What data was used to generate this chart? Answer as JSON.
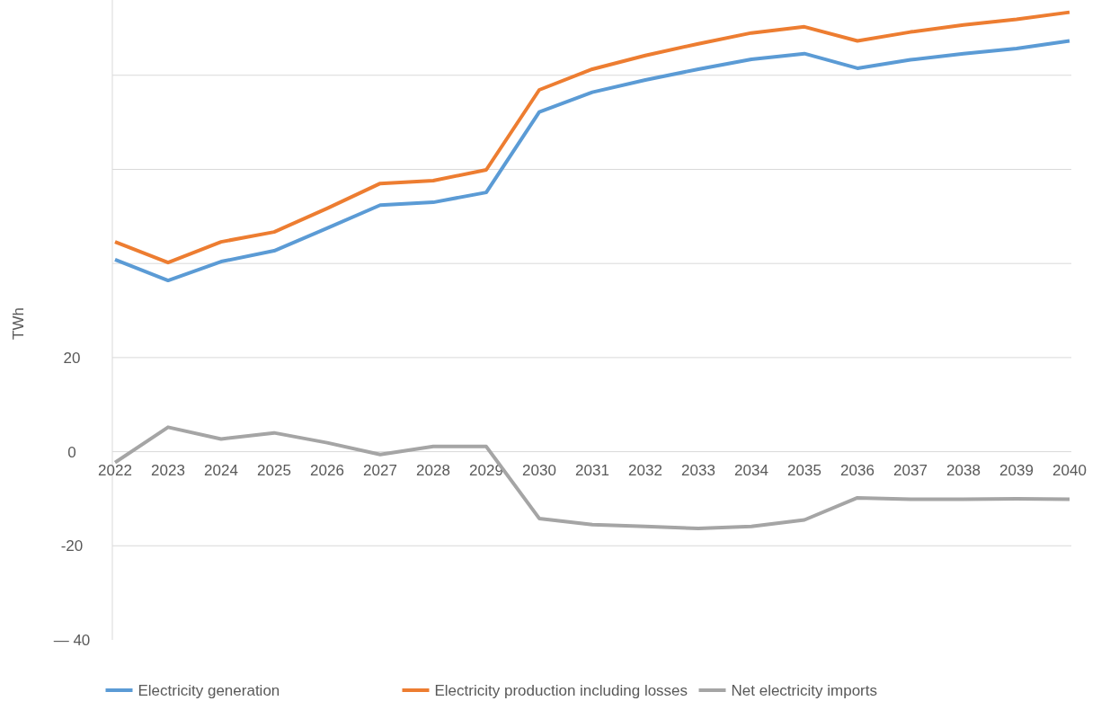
{
  "chart_data": {
    "type": "line",
    "ylabel": "TWh",
    "categories": [
      "2022",
      "2023",
      "2024",
      "2025",
      "2026",
      "2027",
      "2028",
      "2029",
      "2030",
      "2031",
      "2032",
      "2033",
      "2034",
      "2035",
      "2036",
      "2037",
      "2038",
      "2039",
      "2040"
    ],
    "series": [
      {
        "name": "Electricity generation",
        "color": "#5b9bd5",
        "values": [
          40.8,
          36.4,
          40.4,
          42.7,
          47.5,
          52.4,
          53.0,
          55.1,
          72.2,
          76.4,
          79.0,
          81.3,
          83.4,
          84.6,
          81.5,
          83.3,
          84.6,
          85.7,
          87.3
        ]
      },
      {
        "name": "Electricity production including losses",
        "color": "#ed7d31",
        "values": [
          44.6,
          40.2,
          44.6,
          46.7,
          51.7,
          57.0,
          57.6,
          59.9,
          76.9,
          81.3,
          84.2,
          86.7,
          89.0,
          90.3,
          87.3,
          89.2,
          90.7,
          91.9,
          93.4
        ]
      },
      {
        "name": "Net electricity imports",
        "color": "#a5a5a5",
        "values": [
          -2.3,
          5.2,
          2.7,
          4.0,
          1.9,
          -0.6,
          1.1,
          1.1,
          -14.2,
          -15.5,
          -15.9,
          -16.3,
          -15.9,
          -14.5,
          -9.8,
          -10.1,
          -10.1,
          -10.0,
          -10.1
        ]
      }
    ],
    "ylim": [
      -40,
      96
    ],
    "yticks": [
      {
        "value": -40,
        "label": "— 40"
      },
      -20,
      0,
      20,
      {
        "value": 40,
        "label": null
      },
      {
        "value": 60,
        "label": null
      },
      {
        "value": 80,
        "label": null
      }
    ],
    "grid": "y",
    "legend": "bottom",
    "line_style": "solid"
  }
}
